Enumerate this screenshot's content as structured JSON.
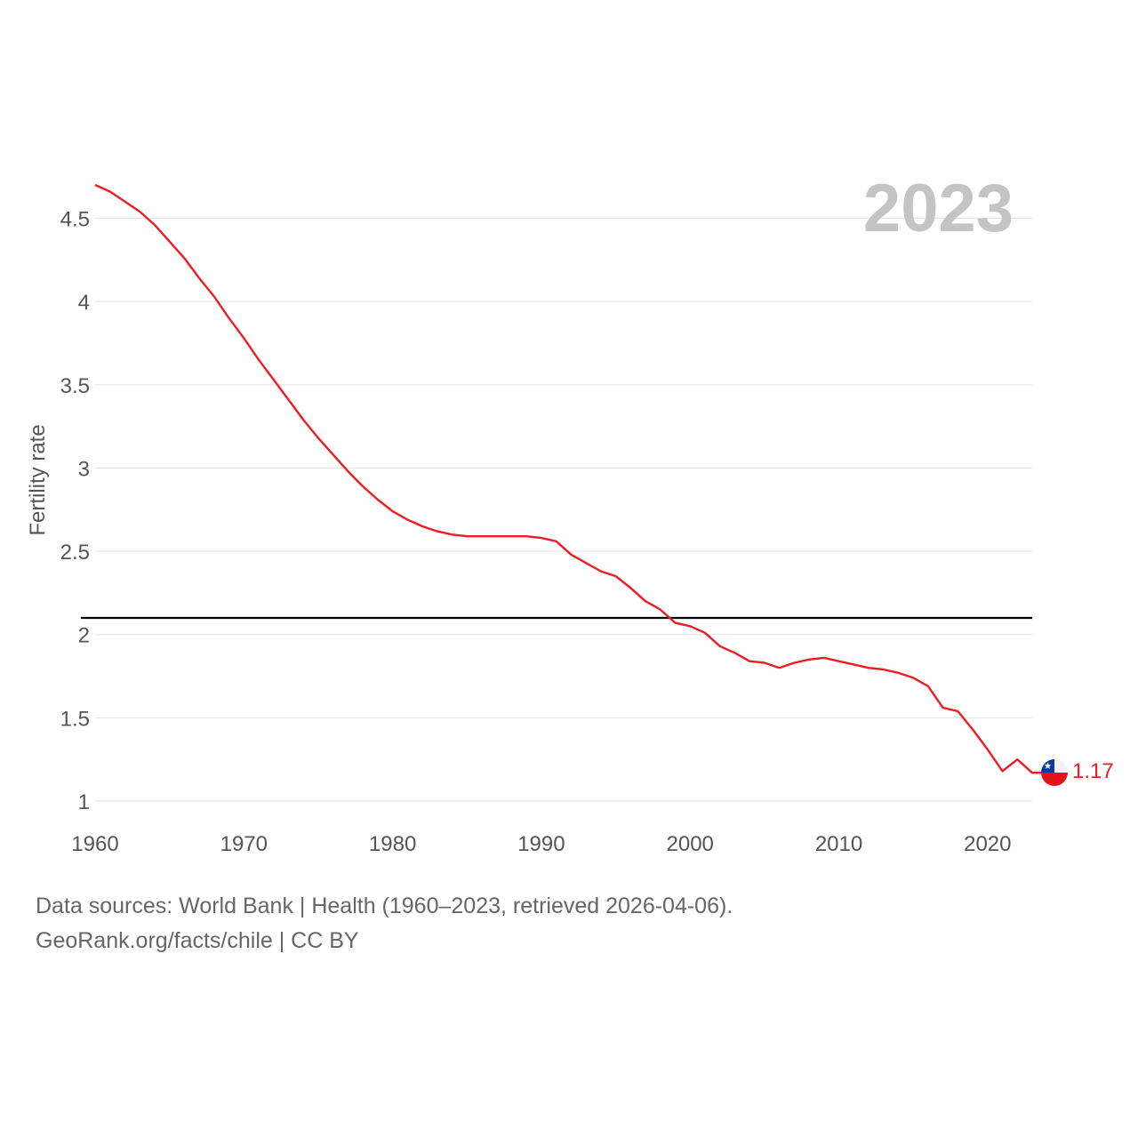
{
  "chart_data": {
    "type": "line",
    "title": "",
    "highlight_year": "2023",
    "xlabel": "",
    "ylabel": "Fertility rate",
    "xlim": [
      1960,
      2023
    ],
    "ylim": [
      0.9,
      4.75
    ],
    "x_ticks": [
      1960,
      1970,
      1980,
      1990,
      2000,
      2010,
      2020
    ],
    "x_tick_labels": [
      "1960",
      "1970",
      "1980",
      "1990",
      "2000",
      "2010",
      "2020"
    ],
    "y_ticks": [
      1,
      1.5,
      2,
      2.5,
      3,
      3.5,
      4,
      4.5
    ],
    "y_tick_labels": [
      "1",
      "1.5",
      "2",
      "2.5",
      "3",
      "3.5",
      "4",
      "4.5"
    ],
    "grid": true,
    "reference_line": {
      "y": 2.1,
      "color": "#000000"
    },
    "series": [
      {
        "name": "Chile",
        "color": "#ee1c25",
        "end_label": "1.17",
        "x": [
          1960,
          1961,
          1962,
          1963,
          1964,
          1965,
          1966,
          1967,
          1968,
          1969,
          1970,
          1971,
          1972,
          1973,
          1974,
          1975,
          1976,
          1977,
          1978,
          1979,
          1980,
          1981,
          1982,
          1983,
          1984,
          1985,
          1986,
          1987,
          1988,
          1989,
          1990,
          1991,
          1992,
          1993,
          1994,
          1995,
          1996,
          1997,
          1998,
          1999,
          2000,
          2001,
          2002,
          2003,
          2004,
          2005,
          2006,
          2007,
          2008,
          2009,
          2010,
          2011,
          2012,
          2013,
          2014,
          2015,
          2016,
          2017,
          2018,
          2019,
          2020,
          2021,
          2022,
          2023
        ],
        "values": [
          4.7,
          4.66,
          4.6,
          4.54,
          4.46,
          4.36,
          4.26,
          4.14,
          4.03,
          3.9,
          3.78,
          3.65,
          3.53,
          3.41,
          3.29,
          3.18,
          3.08,
          2.98,
          2.89,
          2.81,
          2.74,
          2.69,
          2.65,
          2.62,
          2.6,
          2.59,
          2.59,
          2.59,
          2.59,
          2.59,
          2.58,
          2.56,
          2.48,
          2.43,
          2.38,
          2.35,
          2.28,
          2.2,
          2.15,
          2.07,
          2.05,
          2.01,
          1.93,
          1.89,
          1.84,
          1.83,
          1.8,
          1.83,
          1.85,
          1.86,
          1.84,
          1.82,
          1.8,
          1.79,
          1.77,
          1.74,
          1.69,
          1.56,
          1.54,
          1.43,
          1.31,
          1.18,
          1.25,
          1.17
        ]
      }
    ]
  },
  "footer": {
    "source_line": "Data sources: World Bank | Health (1960–2023, retrieved 2026-04-06).",
    "attribution_line": "GeoRank.org/facts/chile | CC BY"
  },
  "flag": {
    "icon": "chile-flag-icon",
    "colors": {
      "red": "#e5121b",
      "white": "#f2f2f2",
      "blue": "#0b39a8"
    }
  }
}
